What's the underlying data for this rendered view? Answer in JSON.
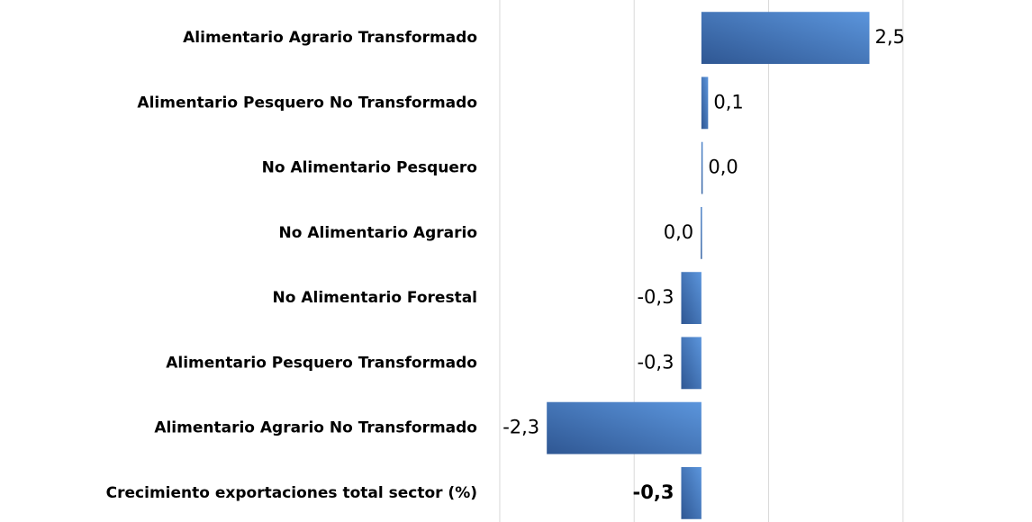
{
  "chart_data": {
    "type": "barh",
    "categories": [
      "Alimentario Agrario Transformado",
      "Alimentario Pesquero No Transformado",
      "No Alimentario Pesquero",
      "No Alimentario Agrario",
      "No Alimentario Forestal",
      "Alimentario Pesquero Transformado",
      "Alimentario Agrario No Transformado",
      "Crecimiento exportaciones total sector (%)"
    ],
    "values": [
      2.5,
      0.1,
      0.02,
      -0.01,
      -0.3,
      -0.3,
      -2.3,
      -0.3
    ],
    "value_labels": [
      "2,5",
      "0,1",
      "0,0",
      "0,0",
      "-0,3",
      "-0,3",
      "-2,3",
      "-0,3"
    ],
    "color": "#4a7bc0",
    "xlim": [
      -3.2,
      3.9
    ],
    "xticks": [
      -3,
      -1,
      1,
      3
    ],
    "grid": true
  }
}
